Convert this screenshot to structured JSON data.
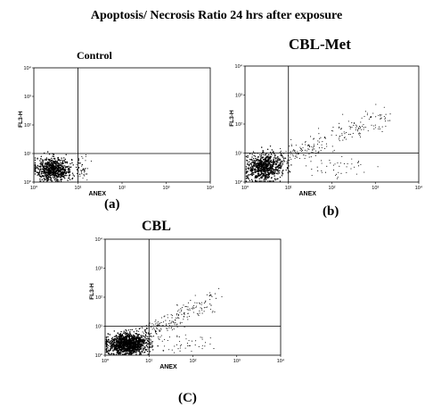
{
  "figure": {
    "title": "Apoptosis/ Necrosis Ratio 24 hrs after exposure"
  },
  "colors": {
    "ink": "#000000",
    "background": "#ffffff"
  },
  "chart_data": [
    {
      "type": "scatter",
      "title": "Control",
      "panel_label": "(a)",
      "xlabel": "ANEX",
      "ylabel": "FL3-H",
      "x_scale": "log",
      "y_scale": "log",
      "xlim": [
        1,
        10000
      ],
      "ylim": [
        1,
        10000
      ],
      "x_ticks": [
        "10⁰",
        "10¹",
        "10²",
        "10³",
        "10⁴"
      ],
      "y_ticks": [
        "10⁰",
        "10¹",
        "10²",
        "10³",
        "10⁴"
      ],
      "quadrant_gates": {
        "x": 10,
        "y": 10
      },
      "grid": false,
      "legend": "none",
      "clusters": [
        {
          "x_range": [
            1,
            8
          ],
          "y_range": [
            1,
            8
          ],
          "density": "high"
        },
        {
          "x_range": [
            8,
            20
          ],
          "y_range": [
            1,
            10
          ],
          "density": "low"
        }
      ]
    },
    {
      "type": "scatter",
      "title": "CBL-Met",
      "panel_label": "(b)",
      "xlabel": "ANEX",
      "ylabel": "FL3-H",
      "x_scale": "log",
      "y_scale": "log",
      "xlim": [
        1,
        10000
      ],
      "ylim": [
        1,
        10000
      ],
      "x_ticks": [
        "10⁰",
        "10¹",
        "10²",
        "10³",
        "10⁴"
      ],
      "y_ticks": [
        "10⁰",
        "10¹",
        "10²",
        "10³",
        "10⁴"
      ],
      "quadrant_gates": {
        "x": 10,
        "y": 10
      },
      "grid": false,
      "legend": "none",
      "clusters": [
        {
          "x_range": [
            1,
            8
          ],
          "y_range": [
            1,
            10
          ],
          "density": "high"
        },
        {
          "x_range": [
            5,
            2000
          ],
          "y_range": [
            5,
            200
          ],
          "density": "medium"
        },
        {
          "x_range": [
            10,
            2000
          ],
          "y_range": [
            1,
            10
          ],
          "density": "low"
        }
      ]
    },
    {
      "type": "scatter",
      "title": "CBL",
      "panel_label": "(C)",
      "xlabel": "ANEX",
      "ylabel": "FL3-H",
      "x_scale": "log",
      "y_scale": "log",
      "xlim": [
        1,
        10000
      ],
      "ylim": [
        1,
        10000
      ],
      "x_ticks": [
        "10⁰",
        "10¹",
        "10²",
        "10³",
        "10⁴"
      ],
      "y_ticks": [
        "10⁰",
        "10¹",
        "10²",
        "10³",
        "10⁴"
      ],
      "quadrant_gates": {
        "x": 10,
        "y": 10
      },
      "grid": false,
      "legend": "none",
      "clusters": [
        {
          "x_range": [
            1,
            10
          ],
          "y_range": [
            1,
            6
          ],
          "density": "very high"
        },
        {
          "x_range": [
            5,
            300
          ],
          "y_range": [
            3,
            100
          ],
          "density": "medium"
        },
        {
          "x_range": [
            10,
            300
          ],
          "y_range": [
            1,
            8
          ],
          "density": "low"
        }
      ]
    }
  ]
}
